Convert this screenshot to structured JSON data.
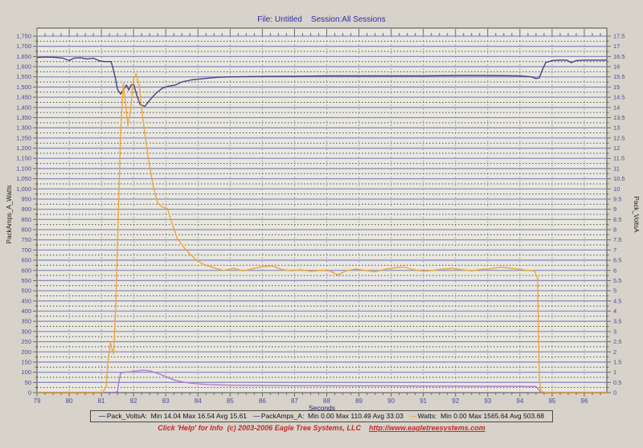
{
  "header": {
    "title": "File: Untitled    Session:All Sessions"
  },
  "colors": {
    "page_bg": "#d7d3ca",
    "plot_bg": "#e9e8e0",
    "frame": "#4a4a4a",
    "grid_major": "#8c8cc0",
    "grid_minor_dotted": "#4c4c44",
    "grid_vertical": "#a8a8b0",
    "tick_label": "#4a4a9c",
    "axis_title": "#222222",
    "series_volts": "#45457c",
    "series_amps": "#b478d0",
    "series_watts": "#efa53d",
    "footer_red": "#c22a2a",
    "title_blue": "#2d2da8"
  },
  "chart_data": {
    "type": "line",
    "xlabel": "Seconds",
    "ylabel_left": "PackAmps_A_Watts",
    "ylabel_right": "Pack_VoltsA",
    "x_range": [
      79,
      96.7
    ],
    "x_tick_step": 1,
    "x_minor_step": 0.25,
    "y_left_range": [
      0,
      1750
    ],
    "y_left_label_step": 50,
    "y_left_line_step": 25,
    "y_right_range": [
      0,
      17.5
    ],
    "y_right_label_step": 0.5,
    "grid": "on",
    "legend_position": "bottom",
    "series": [
      {
        "name": "Pack_VoltsA",
        "axis": "right",
        "color": "#45457c",
        "stats": {
          "min": 14.04,
          "max": 16.54,
          "avg": 15.61
        },
        "points": [
          [
            79,
            16.45
          ],
          [
            79.3,
            16.47
          ],
          [
            79.6,
            16.45
          ],
          [
            79.8,
            16.42
          ],
          [
            80.0,
            16.3
          ],
          [
            80.15,
            16.42
          ],
          [
            80.35,
            16.44
          ],
          [
            80.55,
            16.38
          ],
          [
            80.75,
            16.42
          ],
          [
            80.95,
            16.28
          ],
          [
            81.1,
            16.25
          ],
          [
            81.3,
            16.25
          ],
          [
            81.35,
            16.0
          ],
          [
            81.45,
            15.35
          ],
          [
            81.5,
            14.9
          ],
          [
            81.6,
            14.65
          ],
          [
            81.7,
            14.9
          ],
          [
            81.78,
            15.1
          ],
          [
            81.85,
            14.85
          ],
          [
            81.92,
            15.1
          ],
          [
            82.0,
            15.15
          ],
          [
            82.1,
            14.6
          ],
          [
            82.2,
            14.15
          ],
          [
            82.35,
            14.05
          ],
          [
            82.5,
            14.35
          ],
          [
            82.7,
            14.7
          ],
          [
            82.9,
            14.95
          ],
          [
            83.1,
            15.05
          ],
          [
            83.3,
            15.1
          ],
          [
            83.5,
            15.25
          ],
          [
            83.8,
            15.35
          ],
          [
            84.2,
            15.42
          ],
          [
            84.6,
            15.48
          ],
          [
            85.0,
            15.5
          ],
          [
            86,
            15.52
          ],
          [
            87,
            15.53
          ],
          [
            88,
            15.55
          ],
          [
            89,
            15.55
          ],
          [
            90,
            15.55
          ],
          [
            91,
            15.55
          ],
          [
            92,
            15.57
          ],
          [
            93,
            15.57
          ],
          [
            94,
            15.55
          ],
          [
            94.35,
            15.5
          ],
          [
            94.5,
            15.42
          ],
          [
            94.6,
            15.45
          ],
          [
            94.7,
            15.85
          ],
          [
            94.8,
            16.2
          ],
          [
            95.0,
            16.3
          ],
          [
            95.2,
            16.32
          ],
          [
            95.45,
            16.32
          ],
          [
            95.6,
            16.2
          ],
          [
            95.75,
            16.3
          ],
          [
            96.0,
            16.32
          ],
          [
            96.7,
            16.32
          ]
        ]
      },
      {
        "name": "PackAmps_A",
        "axis": "left",
        "color": "#b478d0",
        "stats": {
          "min": 0.0,
          "max": 110.49,
          "avg": 33.03
        },
        "points": [
          [
            79,
            1
          ],
          [
            81.4,
            1
          ],
          [
            81.5,
            4
          ],
          [
            81.55,
            60
          ],
          [
            81.6,
            95
          ],
          [
            81.7,
            100
          ],
          [
            81.9,
            102
          ],
          [
            82.1,
            106
          ],
          [
            82.3,
            110
          ],
          [
            82.5,
            107
          ],
          [
            82.7,
            97
          ],
          [
            82.9,
            85
          ],
          [
            83.1,
            72
          ],
          [
            83.3,
            60
          ],
          [
            83.6,
            50
          ],
          [
            83.9,
            44
          ],
          [
            84.3,
            40
          ],
          [
            84.7,
            38
          ],
          [
            85.2,
            36
          ],
          [
            86,
            35
          ],
          [
            87,
            34
          ],
          [
            88,
            34
          ],
          [
            89,
            33
          ],
          [
            90,
            33
          ],
          [
            91,
            32
          ],
          [
            92,
            32
          ],
          [
            93,
            31
          ],
          [
            94,
            31
          ],
          [
            94.5,
            30
          ],
          [
            94.6,
            12
          ],
          [
            94.65,
            2
          ],
          [
            94.8,
            1
          ],
          [
            96.7,
            1
          ]
        ]
      },
      {
        "name": "Watts",
        "axis": "left",
        "color": "#efa53d",
        "stats": {
          "min": 0.0,
          "max": 1565.64,
          "avg": 503.68
        },
        "points": [
          [
            79,
            2
          ],
          [
            81.05,
            2
          ],
          [
            81.15,
            30
          ],
          [
            81.2,
            140
          ],
          [
            81.28,
            245
          ],
          [
            81.33,
            215
          ],
          [
            81.38,
            190
          ],
          [
            81.45,
            430
          ],
          [
            81.52,
            830
          ],
          [
            81.6,
            1280
          ],
          [
            81.68,
            1520
          ],
          [
            81.75,
            1420
          ],
          [
            81.82,
            1310
          ],
          [
            81.9,
            1380
          ],
          [
            82.0,
            1540
          ],
          [
            82.08,
            1565
          ],
          [
            82.18,
            1500
          ],
          [
            82.3,
            1330
          ],
          [
            82.45,
            1160
          ],
          [
            82.6,
            1020
          ],
          [
            82.75,
            930
          ],
          [
            82.9,
            910
          ],
          [
            83.05,
            905
          ],
          [
            83.2,
            830
          ],
          [
            83.35,
            760
          ],
          [
            83.55,
            715
          ],
          [
            83.75,
            680
          ],
          [
            83.95,
            650
          ],
          [
            84.2,
            628
          ],
          [
            84.5,
            612
          ],
          [
            84.8,
            600
          ],
          [
            85.1,
            610
          ],
          [
            85.4,
            598
          ],
          [
            85.7,
            608
          ],
          [
            86.0,
            618
          ],
          [
            86.3,
            622
          ],
          [
            86.6,
            605
          ],
          [
            86.9,
            598
          ],
          [
            87.2,
            603
          ],
          [
            87.5,
            595
          ],
          [
            87.8,
            600
          ],
          [
            88.1,
            597
          ],
          [
            88.35,
            578
          ],
          [
            88.6,
            598
          ],
          [
            88.9,
            607
          ],
          [
            89.2,
            600
          ],
          [
            89.5,
            593
          ],
          [
            89.8,
            605
          ],
          [
            90.1,
            613
          ],
          [
            90.4,
            617
          ],
          [
            90.7,
            603
          ],
          [
            91.0,
            596
          ],
          [
            91.3,
            600
          ],
          [
            91.6,
            606
          ],
          [
            91.9,
            610
          ],
          [
            92.2,
            603
          ],
          [
            92.5,
            598
          ],
          [
            92.8,
            605
          ],
          [
            93.1,
            608
          ],
          [
            93.4,
            616
          ],
          [
            93.7,
            611
          ],
          [
            94.0,
            606
          ],
          [
            94.2,
            600
          ],
          [
            94.45,
            598
          ],
          [
            94.55,
            560
          ],
          [
            94.6,
            80
          ],
          [
            94.65,
            5
          ],
          [
            94.8,
            2
          ],
          [
            96.7,
            2
          ]
        ]
      }
    ]
  },
  "legend": {
    "entries": [
      {
        "color": "#45457c",
        "label": "Pack_VoltsA:  Min 14.04 Max 16.54 Avg 15.61"
      },
      {
        "color": "#5555a0",
        "label": "PackAmps_A:  Min 0.00 Max 110.49 Avg 33.03"
      },
      {
        "color": "#efa53d",
        "label": "Watts:  Min 0.00 Max 1565.64 Avg 503.68"
      }
    ]
  },
  "footer": {
    "text": "Click 'Help' for Info  (c) 2003-2006 Eagle Tree Systems, LLC    ",
    "url": "http://www.eagletreesystems.com"
  }
}
